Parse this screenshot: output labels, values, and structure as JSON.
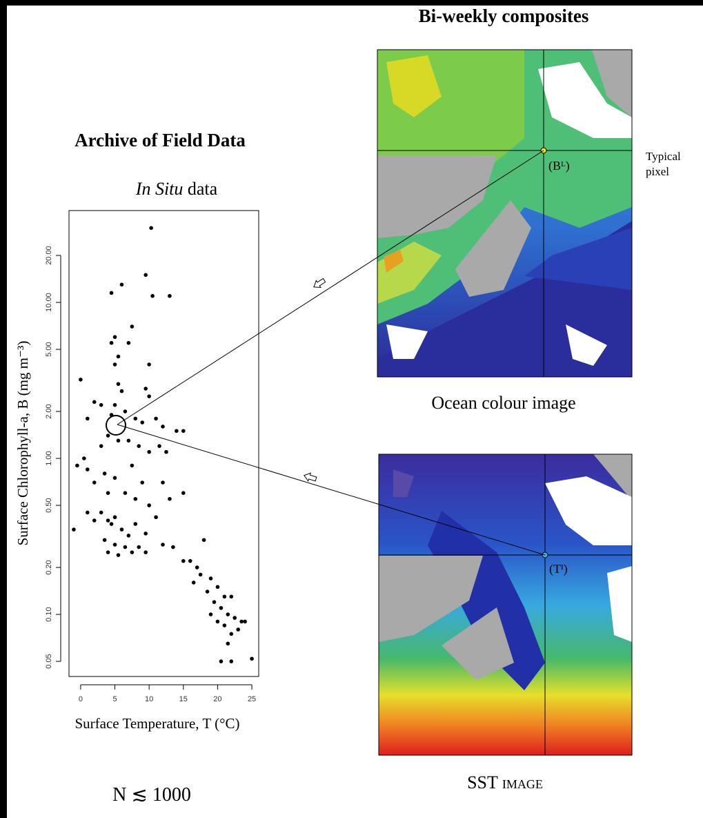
{
  "header": {
    "title": "Bi-weekly composites"
  },
  "archive_title": "Archive of Field Data",
  "in_situ_label": [
    "In Situ",
    "data"
  ],
  "sample_size": "N ≲ 1000",
  "typical_pixel": [
    "Typical",
    "pixel"
  ],
  "ocean_colour_image": {
    "caption": "Ocean colour image",
    "pixel_label": "(Bᴸ)"
  },
  "sst_image": {
    "caption": "SST image",
    "pixel_label": "(Tᴵ)"
  },
  "chart_data": {
    "type": "scatter",
    "x_label": "Surface Temperature, T (°C)",
    "y_label": "Surface Chlorophyll-a, B (mg m⁻³)",
    "color": "#000000",
    "log_y": true,
    "x": [
      10.3,
      9.5,
      10.5,
      13,
      6,
      4.5,
      7.5,
      5,
      4.5,
      7,
      5.5,
      5,
      10,
      0,
      5.5,
      6,
      9.5,
      10,
      2,
      3,
      5,
      4.5,
      1,
      6.5,
      8,
      9,
      11,
      12,
      14,
      15,
      4,
      5.5,
      7,
      8.5,
      10,
      11.5,
      3,
      0.5,
      -0.5,
      1,
      3.5,
      5,
      7.5,
      9,
      12,
      15,
      2,
      4,
      6.5,
      8,
      10,
      13,
      1,
      3,
      4,
      4.5,
      5,
      2,
      -1,
      6,
      7,
      8,
      9.5,
      11,
      3.5,
      5,
      6.5,
      8.5,
      4,
      5.5,
      7.5,
      9.5,
      12,
      13.5,
      15,
      16,
      17,
      18,
      17.5,
      19,
      16.5,
      18.5,
      20,
      21,
      19.5,
      20.5,
      22,
      21.5,
      22.5,
      23.5,
      19,
      20,
      21,
      22,
      23,
      24,
      21.5,
      20.5,
      22,
      25,
      12.5
    ],
    "values": [
      30,
      15,
      11,
      11,
      13,
      11.5,
      7,
      6,
      5.5,
      5.5,
      4.5,
      4,
      4,
      3.2,
      3,
      2.7,
      2.8,
      2.5,
      2.3,
      2.2,
      2.2,
      1.9,
      1.8,
      2,
      1.8,
      1.7,
      1.8,
      1.6,
      1.5,
      1.5,
      1.4,
      1.3,
      1.3,
      1.2,
      1.1,
      1.2,
      1.2,
      1,
      0.9,
      0.85,
      0.8,
      0.75,
      0.9,
      0.7,
      0.7,
      0.6,
      0.7,
      0.6,
      0.6,
      0.55,
      0.5,
      0.55,
      0.45,
      0.45,
      0.4,
      0.38,
      0.42,
      0.4,
      0.35,
      0.35,
      0.32,
      0.38,
      0.33,
      0.42,
      0.3,
      0.28,
      0.27,
      0.27,
      0.25,
      0.24,
      0.25,
      0.25,
      0.28,
      0.27,
      0.22,
      0.22,
      0.2,
      0.3,
      0.18,
      0.17,
      0.16,
      0.14,
      0.15,
      0.13,
      0.12,
      0.11,
      0.13,
      0.1,
      0.095,
      0.09,
      0.1,
      0.09,
      0.085,
      0.075,
      0.08,
      0.09,
      0.065,
      0.05,
      0.05,
      0.052,
      1.1
    ],
    "xlim": [
      -1.7,
      26
    ],
    "ylim": [
      0.04,
      38.8
    ],
    "xticks": [
      0,
      5,
      10,
      15,
      20,
      25
    ],
    "yticks": [
      0.05,
      {
        "value": 0.1,
        "label": "0.10"
      },
      {
        "value": 0.2,
        "label": "0.20"
      },
      {
        "value": 0.5,
        "label": "0.50"
      },
      {
        "value": 1,
        "label": "1.00"
      },
      {
        "value": 2,
        "label": "2.00"
      },
      {
        "value": 5,
        "label": "5.00"
      },
      {
        "value": 10,
        "label": "10.00"
      },
      {
        "value": 20,
        "label": "20.00"
      }
    ]
  }
}
